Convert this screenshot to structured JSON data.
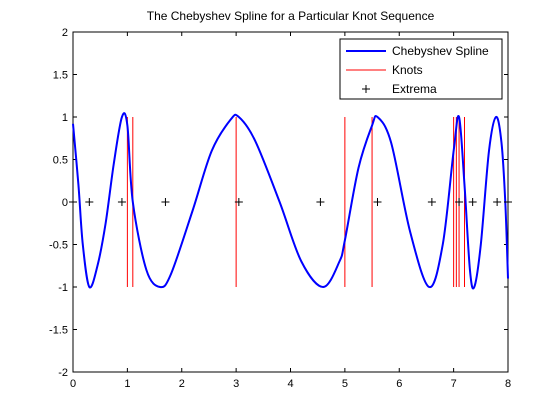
{
  "chart_data": {
    "type": "line",
    "title": "The Chebyshev Spline for a Particular Knot Sequence",
    "xlabel": "",
    "ylabel": "",
    "xlim": [
      0,
      8
    ],
    "ylim": [
      -2,
      2
    ],
    "x_ticks": [
      0,
      1,
      2,
      3,
      4,
      5,
      6,
      7,
      8
    ],
    "y_ticks": [
      -2,
      -1.5,
      -1,
      -0.5,
      0,
      0.5,
      1,
      1.5,
      2
    ],
    "grid": false,
    "legend_position": "top-right",
    "series": [
      {
        "name": "Chebyshev Spline",
        "kind": "curve",
        "color": "#0000ff",
        "points": [
          [
            0,
            0.92
          ],
          [
            0.1,
            0.2
          ],
          [
            0.18,
            -0.5
          ],
          [
            0.3,
            -1.0
          ],
          [
            0.45,
            -0.75
          ],
          [
            0.6,
            -0.25
          ],
          [
            0.75,
            0.45
          ],
          [
            0.9,
            1.0
          ],
          [
            1.0,
            0.9
          ],
          [
            1.1,
            0.0
          ],
          [
            1.35,
            -0.8
          ],
          [
            1.6,
            -1.0
          ],
          [
            1.8,
            -0.85
          ],
          [
            2.2,
            -0.1
          ],
          [
            2.55,
            0.6
          ],
          [
            2.9,
            0.97
          ],
          [
            3.05,
            1.0
          ],
          [
            3.35,
            0.72
          ],
          [
            3.8,
            0.0
          ],
          [
            4.2,
            -0.7
          ],
          [
            4.6,
            -1.0
          ],
          [
            4.9,
            -0.7
          ],
          [
            5.0,
            -0.45
          ],
          [
            5.25,
            0.4
          ],
          [
            5.5,
            0.9
          ],
          [
            5.6,
            1.0
          ],
          [
            5.85,
            0.7
          ],
          [
            6.2,
            -0.35
          ],
          [
            6.55,
            -1.0
          ],
          [
            6.8,
            -0.5
          ],
          [
            7.0,
            0.6
          ],
          [
            7.1,
            1.0
          ],
          [
            7.2,
            0.2
          ],
          [
            7.3,
            -0.8
          ],
          [
            7.38,
            -1.0
          ],
          [
            7.5,
            -0.5
          ],
          [
            7.65,
            0.6
          ],
          [
            7.78,
            1.0
          ],
          [
            7.88,
            0.7
          ],
          [
            7.95,
            0.0
          ],
          [
            8.0,
            -0.9
          ]
        ]
      },
      {
        "name": "Knots",
        "kind": "vlines",
        "color": "#ff0000",
        "x": [
          1,
          1.1,
          3,
          5,
          5.5,
          7,
          7.05,
          7.1,
          7.2
        ],
        "y_range": [
          -1,
          1
        ]
      },
      {
        "name": "Extrema",
        "kind": "markers",
        "marker": "+",
        "color": "#000000",
        "x": [
          0,
          0.3,
          0.9,
          1.7,
          3.05,
          4.55,
          5.6,
          6.6,
          7.1,
          7.35,
          7.8,
          8.0
        ],
        "y": [
          0,
          0,
          0,
          0,
          0,
          0,
          0,
          0,
          0,
          0,
          0,
          0
        ]
      }
    ]
  }
}
